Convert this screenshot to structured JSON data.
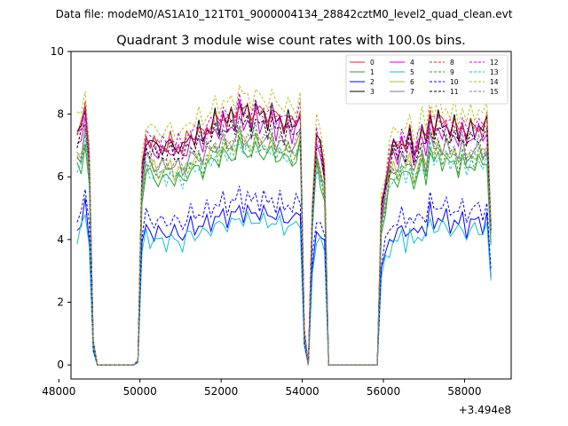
{
  "chart_data": {
    "type": "line",
    "suptitle": "Data file: modeM0/AS1A10_121T01_9000004134_28842cztM0_level2_quad_clean.evt",
    "title": "Quadrant 3 module wise count rates with 100.0s bins.",
    "xlabel": "",
    "ylabel": "",
    "offset_text": "+3.494e8",
    "xlim": [
      48300,
      59150
    ],
    "ylim": [
      -0.45,
      10
    ],
    "xticks": [
      48000,
      50000,
      52000,
      54000,
      56000,
      58000
    ],
    "xtick_labels": [
      "48000",
      "50000",
      "52000",
      "54000",
      "56000",
      "58000"
    ],
    "yticks": [
      0,
      2,
      4,
      6,
      8,
      10
    ],
    "ytick_labels": [
      "0",
      "2",
      "4",
      "6",
      "8",
      "10"
    ],
    "legend_position": "top-right",
    "series": [
      {
        "name": "0",
        "color": "#d62728",
        "style": "solid",
        "base": 7.35,
        "amp": 1.0
      },
      {
        "name": "1",
        "color": "#2ca02c",
        "style": "solid",
        "base": 6.2,
        "amp": 0.8
      },
      {
        "name": "2",
        "color": "#0000ff",
        "style": "solid",
        "base": 4.4,
        "amp": 0.6
      },
      {
        "name": "3",
        "color": "#000000",
        "style": "solid",
        "base": 7.3,
        "amp": 0.95
      },
      {
        "name": "4",
        "color": "#cc00cc",
        "style": "solid",
        "base": 7.1,
        "amp": 0.9
      },
      {
        "name": "5",
        "color": "#17becf",
        "style": "solid",
        "base": 4.15,
        "amp": 0.6
      },
      {
        "name": "6",
        "color": "#bcbd22",
        "style": "solid",
        "base": 6.5,
        "amp": 0.8
      },
      {
        "name": "7",
        "color": "#7f7f7f",
        "style": "solid",
        "base": 6.6,
        "amp": 0.8
      },
      {
        "name": "8",
        "color": "#d62728",
        "style": "dashed",
        "base": 7.3,
        "amp": 0.95
      },
      {
        "name": "9",
        "color": "#2ca02c",
        "style": "dashed",
        "base": 6.4,
        "amp": 0.8
      },
      {
        "name": "10",
        "color": "#0000ff",
        "style": "dashed",
        "base": 4.8,
        "amp": 0.65
      },
      {
        "name": "11",
        "color": "#000000",
        "style": "dashed",
        "base": 7.0,
        "amp": 0.9
      },
      {
        "name": "12",
        "color": "#cc00cc",
        "style": "dashed",
        "base": 7.4,
        "amp": 0.95
      },
      {
        "name": "13",
        "color": "#17becf",
        "style": "dashed",
        "base": 6.3,
        "amp": 0.8
      },
      {
        "name": "14",
        "color": "#bcbd22",
        "style": "dashed",
        "base": 7.8,
        "amp": 1.0
      },
      {
        "name": "15",
        "color": "#7f7f7f",
        "style": "dashed",
        "base": 6.7,
        "amp": 0.85
      }
    ],
    "x": [
      48450,
      48550,
      48650,
      48750,
      48850,
      48950,
      49050,
      49150,
      49250,
      49350,
      49450,
      49550,
      49650,
      49750,
      49850,
      49950,
      50050,
      50150,
      50250,
      50350,
      50450,
      50550,
      50650,
      50750,
      50850,
      50950,
      51050,
      51150,
      51250,
      51350,
      51450,
      51550,
      51650,
      51750,
      51850,
      51950,
      52050,
      52150,
      52250,
      52350,
      52450,
      52550,
      52650,
      52750,
      52850,
      52950,
      53050,
      53150,
      53250,
      53350,
      53450,
      53550,
      53650,
      53750,
      53850,
      53950,
      54050,
      54150,
      54250,
      54350,
      54450,
      54550,
      54650,
      54750,
      54850,
      54950,
      55050,
      55150,
      55250,
      55350,
      55450,
      55550,
      55650,
      55750,
      55850,
      55950,
      56050,
      56150,
      56250,
      56350,
      56450,
      56550,
      56650,
      56750,
      56850,
      56950,
      57050,
      57150,
      57250,
      57350,
      57450,
      57550,
      57650,
      57750,
      57850,
      57950,
      58050,
      58150,
      58250,
      58350,
      58450,
      58550,
      58650
    ],
    "pattern": [
      0.0,
      0.2,
      1.0,
      0.6,
      0.3,
      0.0,
      0.0,
      0.0,
      0.0,
      0.0,
      0.0,
      0.0,
      0.0,
      0.0,
      0.0,
      0.0,
      0.0,
      0.0,
      -0.2,
      -0.3,
      -0.4,
      -0.3,
      -0.4,
      -0.2,
      -0.4,
      -0.3,
      -0.5,
      -0.2,
      0.1,
      -0.1,
      0.2,
      -0.1,
      0.3,
      0.2,
      0.6,
      0.3,
      0.8,
      0.4,
      0.7,
      0.5,
      1.2,
      0.6,
      0.9,
      0.5,
      1.0,
      0.6,
      0.8,
      0.5,
      0.9,
      0.4,
      0.7,
      0.3,
      0.6,
      0.3,
      0.5,
      0.8,
      0.0,
      0.0,
      0.0,
      0.0,
      0.0,
      0.0,
      0.0,
      0.0,
      0.0,
      0.0,
      0.0,
      0.0,
      0.0,
      0.0,
      0.0,
      0.0,
      0.0,
      0.0,
      0.0,
      -1.5,
      -1.0,
      -0.7,
      -0.3,
      -0.5,
      0.0,
      -0.4,
      0.1,
      -0.6,
      -0.2,
      0.2,
      -0.3,
      0.8,
      0.2,
      0.6,
      0.3,
      0.5,
      0.1,
      0.4,
      0.0,
      0.5,
      -0.1,
      0.3,
      0.2,
      0.4,
      0.1,
      0.5,
      0.0
    ],
    "mask": [
      1,
      1,
      1,
      0.85,
      0.1,
      0,
      0,
      0,
      0,
      0,
      0,
      0,
      0,
      0,
      0,
      0.02,
      0.85,
      1,
      1,
      1,
      1,
      1,
      1,
      1,
      1,
      1,
      1,
      1,
      1,
      1,
      1,
      1,
      1,
      1,
      1,
      1,
      1,
      1,
      1,
      1,
      1,
      1,
      1,
      1,
      1,
      1,
      1,
      1,
      1,
      1,
      1,
      1,
      1,
      1,
      1,
      1,
      0.15,
      0,
      0.7,
      1,
      0.95,
      0.85,
      0,
      0,
      0,
      0,
      0,
      0,
      0,
      0,
      0,
      0,
      0,
      0,
      0,
      0.85,
      0.92,
      1,
      1,
      1,
      1,
      1,
      1,
      1,
      1,
      1,
      1,
      1,
      1,
      1,
      1,
      1,
      1,
      1,
      1,
      1,
      1,
      1,
      1,
      1,
      1,
      1,
      0.62
    ]
  }
}
